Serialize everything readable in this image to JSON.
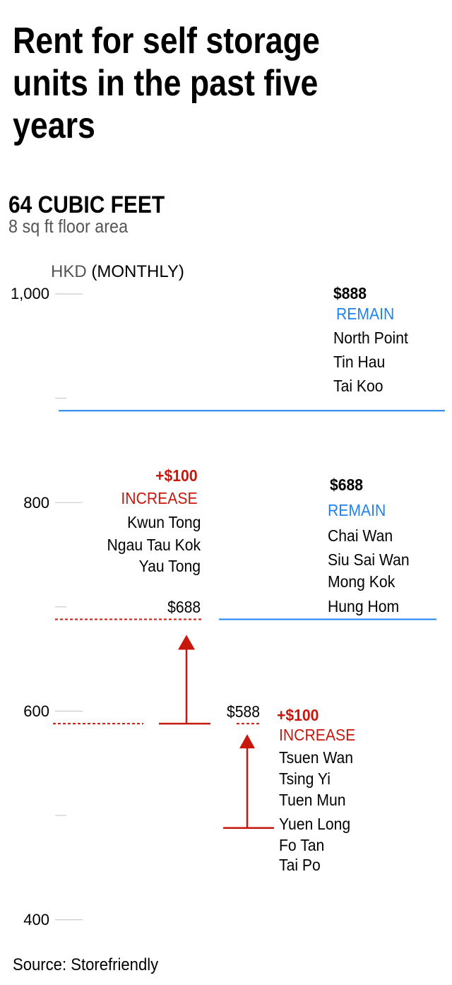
{
  "title": "Rent for self storage units in the past five years",
  "subtitle": "64 CUBIC FEET",
  "subnote": "8 sq ft floor area",
  "unit": {
    "currency": "HKD",
    "period": "(MONTHLY)"
  },
  "source": "Source: Storefriendly",
  "colors": {
    "increase": "#c8170d",
    "remain": "#1e82f0",
    "tick": "#cccccc"
  },
  "chart_data": {
    "type": "range-annotation",
    "ylabel": "HKD (MONTHLY)",
    "ylim": [
      400,
      1000
    ],
    "yticks": [
      "1,000",
      "800",
      "600",
      "400"
    ],
    "ytick_values": [
      1000,
      800,
      600,
      400
    ],
    "minor_ticks": [
      900,
      700,
      500
    ],
    "groups": [
      {
        "status": "REMAIN",
        "price_label": "$888",
        "from": 888,
        "to": 888,
        "areas": [
          "North Point",
          "Tin Hau",
          "Tai Koo"
        ]
      },
      {
        "status": "REMAIN",
        "price_label": "$688",
        "from": 688,
        "to": 688,
        "areas": [
          "Chai Wan",
          "Siu Sai Wan",
          "Mong Kok",
          "Hung Hom"
        ]
      },
      {
        "status": "INCREASE",
        "change_label": "+$100",
        "price_label": "$688",
        "from": 588,
        "to": 688,
        "areas": [
          "Kwun Tong",
          "Ngau Tau Kok",
          "Yau Tong"
        ]
      },
      {
        "status": "INCREASE",
        "change_label": "+$100",
        "price_label": "$588",
        "from": 488,
        "to": 588,
        "areas": [
          "Tsuen Wan",
          "Tsing Yi",
          "Tuen Mun",
          "Yuen Long",
          "Fo Tan",
          "Tai Po"
        ]
      }
    ]
  }
}
